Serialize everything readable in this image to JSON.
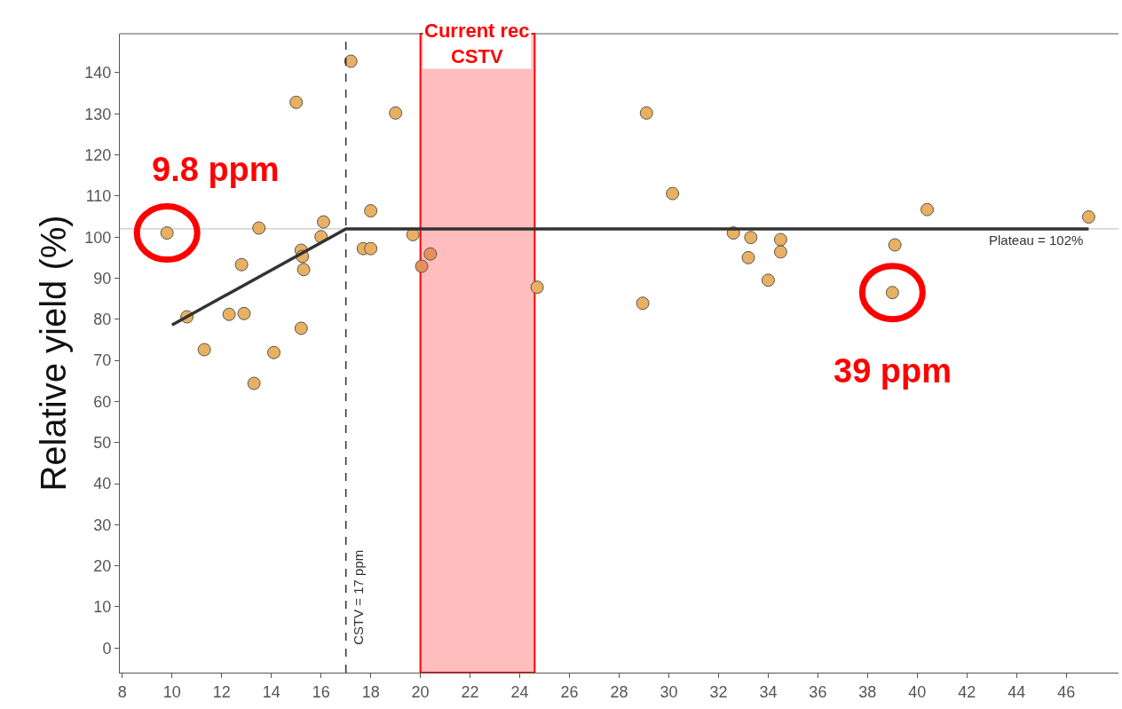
{
  "chart_data": {
    "type": "scatter",
    "ylabel": "Relative yield (%)",
    "xlim": [
      7.9,
      48.1
    ],
    "xticks": [
      8,
      10,
      12,
      14,
      16,
      18,
      20,
      22,
      24,
      26,
      28,
      30,
      32,
      34,
      36,
      38,
      40,
      42,
      44,
      46
    ],
    "ylim": [
      -6,
      149.5
    ],
    "yticks": [
      0,
      10,
      20,
      30,
      40,
      50,
      60,
      70,
      80,
      90,
      100,
      110,
      120,
      130,
      140
    ],
    "grid": false,
    "marker": "circle",
    "series": [
      {
        "color": "#e8b060",
        "x": [
          9.8,
          10.6,
          11.3,
          12.3,
          12.9,
          12.8,
          13.5,
          13.3,
          14.1,
          15.0,
          15.2,
          15.2,
          15.25,
          15.3,
          16.0,
          16.1,
          17.2,
          18.0,
          17.7,
          18.0,
          19.0,
          19.7,
          20.05,
          20.4,
          24.7,
          29.1,
          30.15,
          28.95,
          32.6,
          33.3,
          33.2,
          34.0,
          34.5,
          34.5,
          39.1,
          39,
          40.4,
          46.9
        ],
        "values": [
          101,
          80.6,
          72.6,
          81.2,
          81.4,
          93.3,
          102.2,
          64.4,
          71.9,
          132.8,
          77.8,
          96.8,
          95.3,
          92.1,
          100.1,
          103.7,
          142.8,
          106.4,
          97.2,
          97.2,
          130.2,
          100.6,
          92.9,
          95.9,
          87.8,
          130.2,
          110.6,
          83.9,
          101.0,
          99.9,
          95.0,
          89.5,
          99.4,
          96.4,
          98.1,
          86.5,
          106.7,
          104.9
        ],
        "colors": [
          "#e8b060",
          "#e8b060",
          "#e8b060",
          "#e8b060",
          "#e8b060",
          "#e8b060",
          "#e8b060",
          "#e8b060",
          "#e8b060",
          "#e8b060",
          "#e8b060",
          "#e8b060",
          "#e8b060",
          "#e8b060",
          "#e8b060",
          "#e8b060",
          "#e8b060",
          "#e8b060",
          "#e8b060",
          "#e8b060",
          "#e8b060",
          "#e8b060",
          "#e8905a",
          "#e8905a",
          "#e8b060",
          "#e8b060",
          "#e8b060",
          "#e8b060",
          "#e8b060",
          "#e8b060",
          "#e8b060",
          "#e8b060",
          "#e8b060",
          "#e8b060",
          "#e8b060",
          "#e8b060",
          "#e8b060",
          "#e8b060"
        ]
      },
      {
        "type": "line",
        "color": "#333333",
        "marker": "none",
        "x": [
          10,
          17,
          46.9
        ],
        "values": [
          78.6,
          102,
          102
        ]
      }
    ],
    "ref_lines": [
      {
        "axis": "y",
        "value": 102,
        "label": "Plateau = 102%",
        "color": "#c8c8c8",
        "line_style": "solid"
      },
      {
        "axis": "x",
        "value": 17,
        "label": "CSTV = 17 ppm",
        "color": "#1f2a5a",
        "line_style": "dashed"
      }
    ],
    "bands": [
      {
        "axis": "x",
        "from": 20,
        "to": 24.6,
        "label": "Current rec\nCSTV",
        "color": "#ff0000"
      }
    ],
    "annotations": [
      {
        "text": "9.8 ppm",
        "x": 9.8,
        "y": 101
      },
      {
        "text": "39 ppm",
        "x": 39,
        "y": 86.5
      }
    ]
  }
}
